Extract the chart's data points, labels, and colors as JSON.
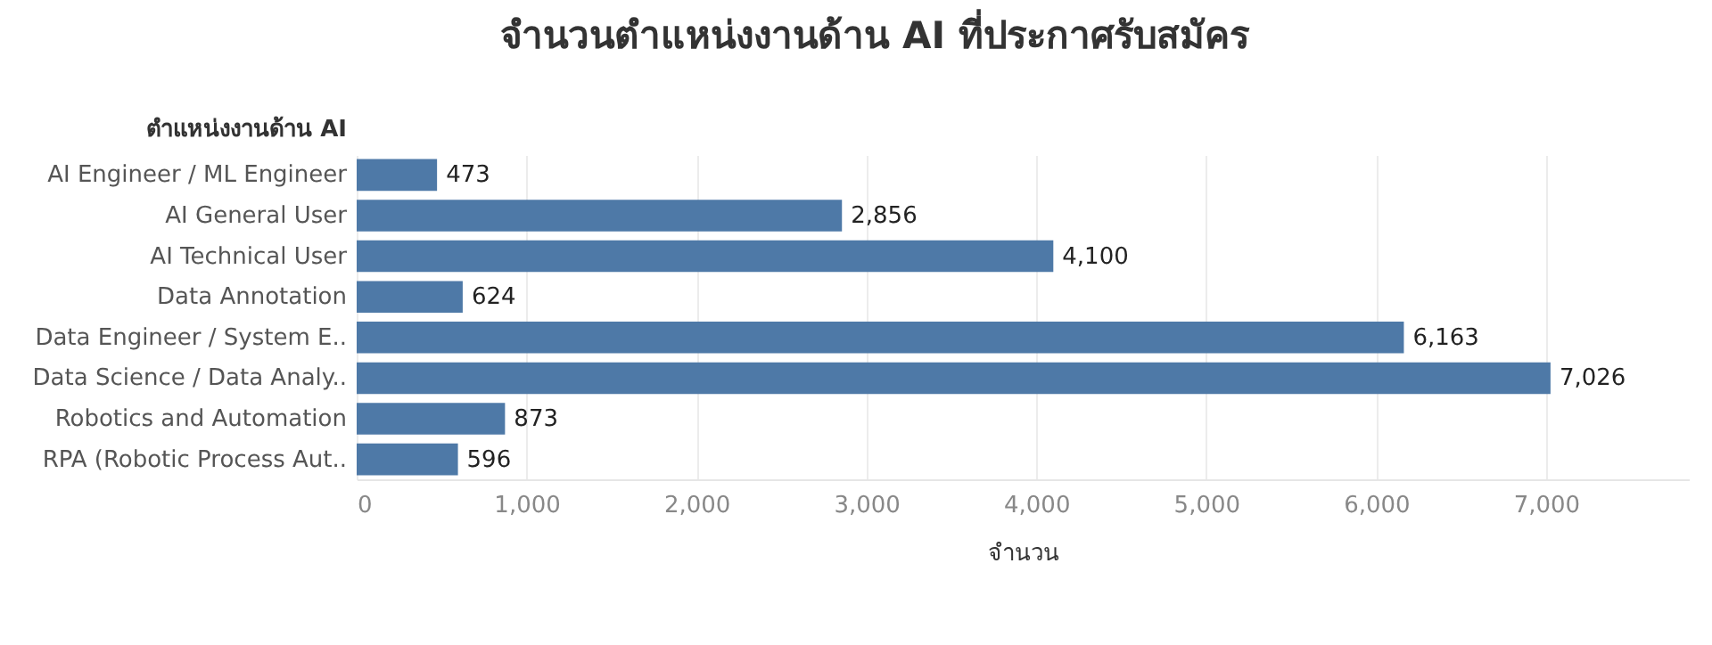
{
  "chart_data": {
    "type": "bar",
    "orientation": "horizontal",
    "title": "จำนวนตำแหน่งงานด้าน AI ที่ประกาศรับสมัคร",
    "xlabel": "จำนวน",
    "ylabel": "ตำแหน่งงานด้าน AI",
    "categories": [
      "AI Engineer / ML Engineer",
      "AI General User",
      "AI Technical User",
      "Data Annotation",
      "Data Engineer / System E..",
      "Data Science / Data Analy..",
      "Robotics and Automation",
      "RPA (Robotic Process Aut.."
    ],
    "values": [
      473,
      2856,
      4100,
      624,
      6163,
      7026,
      873,
      596
    ],
    "color": "#4e79a7",
    "xlim": [
      0,
      7840
    ],
    "xticks": [
      {
        "value": 0,
        "label": "0"
      },
      {
        "value": 1000,
        "label": "1,000"
      },
      {
        "value": 2000,
        "label": "2,000"
      },
      {
        "value": 3000,
        "label": "3,000"
      },
      {
        "value": 4000,
        "label": "4,000"
      },
      {
        "value": 5000,
        "label": "5,000"
      },
      {
        "value": 6000,
        "label": "6,000"
      },
      {
        "value": 7000,
        "label": "7,000"
      }
    ],
    "value_labels": [
      "473",
      "2,856",
      "4,100",
      "624",
      "6,163",
      "7,026",
      "873",
      "596"
    ],
    "grid": "x"
  }
}
